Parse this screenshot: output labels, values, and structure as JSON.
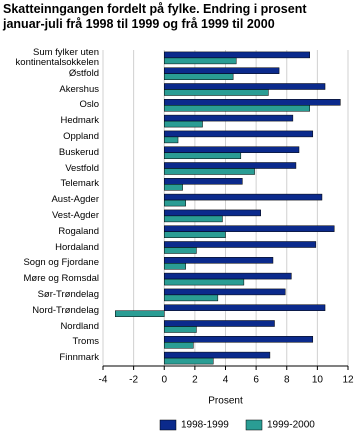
{
  "chart_data": {
    "type": "bar",
    "orientation": "horizontal",
    "title": "Skatteinngangen fordelt på fylke. Endring i prosent\njanuar-juli frå 1998 til 1999 og frå 1999 til 2000",
    "categories": [
      "Sum fylker uten\nkontinentalsokkelen",
      "Østfold",
      "Akershus",
      "Oslo",
      "Hedmark",
      "Oppland",
      "Buskerud",
      "Vestfold",
      "Telemark",
      "Aust-Agder",
      "Vest-Agder",
      "Rogaland",
      "Hordaland",
      "Sogn og Fjordane",
      "Møre og Romsdal",
      "Sør-Trøndelag",
      "Nord-Trøndelag",
      "Nordland",
      "Troms",
      "Finnmark"
    ],
    "series": [
      {
        "name": "1998-1999",
        "color": "#0b2a8c",
        "values": [
          9.5,
          7.5,
          10.5,
          11.5,
          8.4,
          9.7,
          8.8,
          8.6,
          5.1,
          10.3,
          6.3,
          11.1,
          9.9,
          7.1,
          8.3,
          7.9,
          10.5,
          7.2,
          9.7,
          6.9
        ]
      },
      {
        "name": "1999-2000",
        "color": "#2a9d94",
        "values": [
          4.7,
          4.5,
          6.8,
          9.5,
          2.5,
          0.9,
          5.0,
          5.9,
          1.2,
          1.4,
          3.8,
          4.0,
          2.1,
          1.4,
          5.2,
          3.5,
          -3.2,
          2.1,
          1.9,
          3.2
        ]
      }
    ],
    "xlabel": "Prosent",
    "xlim": [
      -4,
      12
    ],
    "xticks": [
      -4,
      -2,
      0,
      2,
      4,
      6,
      8,
      10,
      12
    ],
    "grid": true
  }
}
